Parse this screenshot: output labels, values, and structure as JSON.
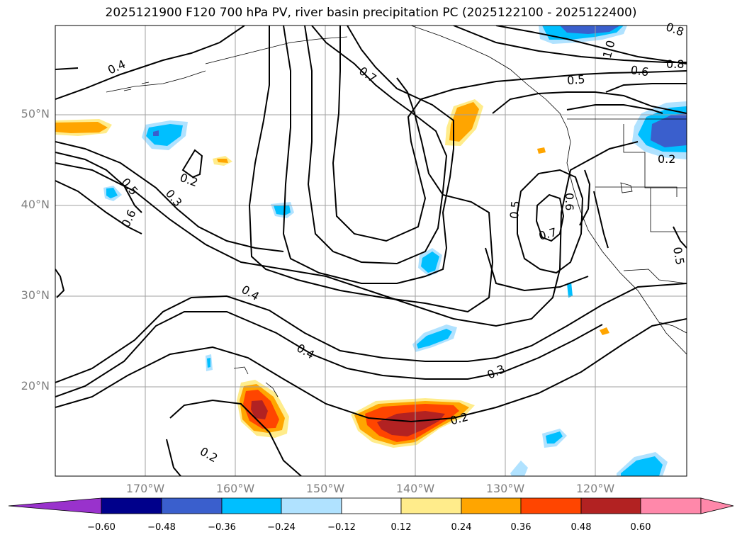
{
  "title": "2025121900 F120 700 hPa PV, river basin precipitation PC (2025122100 - 2025122400)",
  "lat_labels": [
    "50°N",
    "40°N",
    "30°N",
    "20°N"
  ],
  "lon_labels": [
    "170°W",
    "160°W",
    "150°W",
    "140°W",
    "130°W",
    "120°W"
  ],
  "contour_labels": [
    "0.4",
    "0.7",
    "1.0",
    "0.8",
    "0.6",
    "0.5",
    "0.8",
    "0.2",
    "0.5",
    "0.3",
    "0.6",
    "0.5",
    "0.6",
    "0.7",
    "0.4",
    "0.4",
    "0.3",
    "0.2",
    "0.2",
    "0.2",
    "0.5"
  ],
  "colorbar": {
    "ticks": [
      "−0.60",
      "−0.48",
      "−0.36",
      "−0.24",
      "−0.12",
      "0.12",
      "0.24",
      "0.36",
      "0.48",
      "0.60"
    ],
    "colors": [
      "#9932cc",
      "#00008b",
      "#3a5fcd",
      "#00bfff",
      "#b0e2ff",
      "#ffffff",
      "#ffec8b",
      "#ffa500",
      "#ff4500",
      "#b22222",
      "#ff88aa"
    ]
  },
  "colors": {
    "contour": "#000000",
    "grid": "#a0a0a0",
    "coast": "#000000",
    "axis_label": "#808080"
  }
}
